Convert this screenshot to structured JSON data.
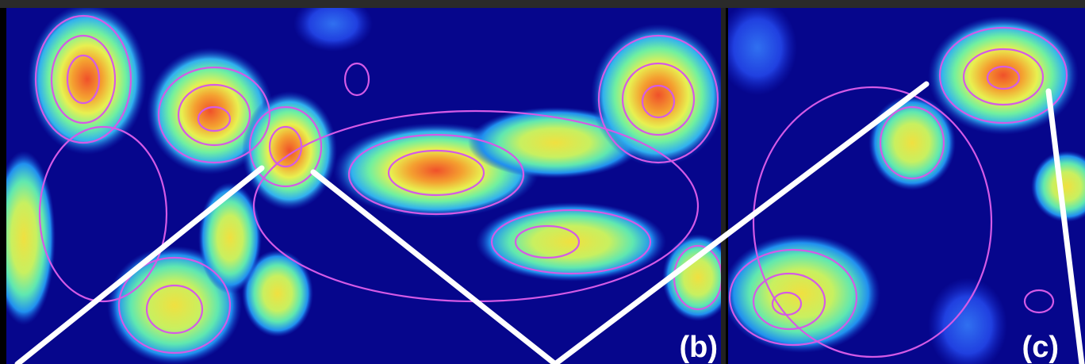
{
  "panels": [
    {
      "label": "(b)"
    },
    {
      "label": "(c)"
    }
  ]
}
